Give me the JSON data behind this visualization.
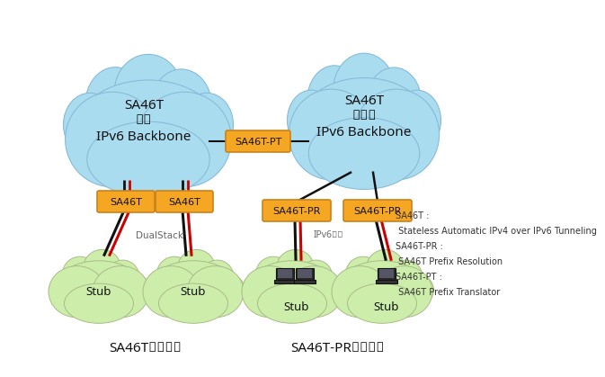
{
  "bg_color": "#ffffff",
  "cloud_color": "#aadcf0",
  "cloud_edge_color": "#88bbd8",
  "stub_color": "#cceeaa",
  "stub_edge_color": "#aabb88",
  "box_color": "#f5a623",
  "box_edge_color": "#c8831a",
  "box_text_color": "#000000",
  "line_black": "#111111",
  "line_red": "#cc0000",
  "cloud_left_label": "SA46T\n対応\nIPv6 Backbone",
  "cloud_right_label": "SA46T\n非対応\nIPv6 Backbone",
  "domain_left_label": "SA46Tドメイン",
  "domain_right_label": "SA46T-PRドメイン",
  "legend_lines": [
    "SA46T :",
    " Stateless Automatic IPv4 over IPv6 Tunneling",
    "SA46T-PR :",
    " SA46T Prefix Resolution",
    "SA46T-PT :",
    " SA46T Prefix Translator"
  ]
}
